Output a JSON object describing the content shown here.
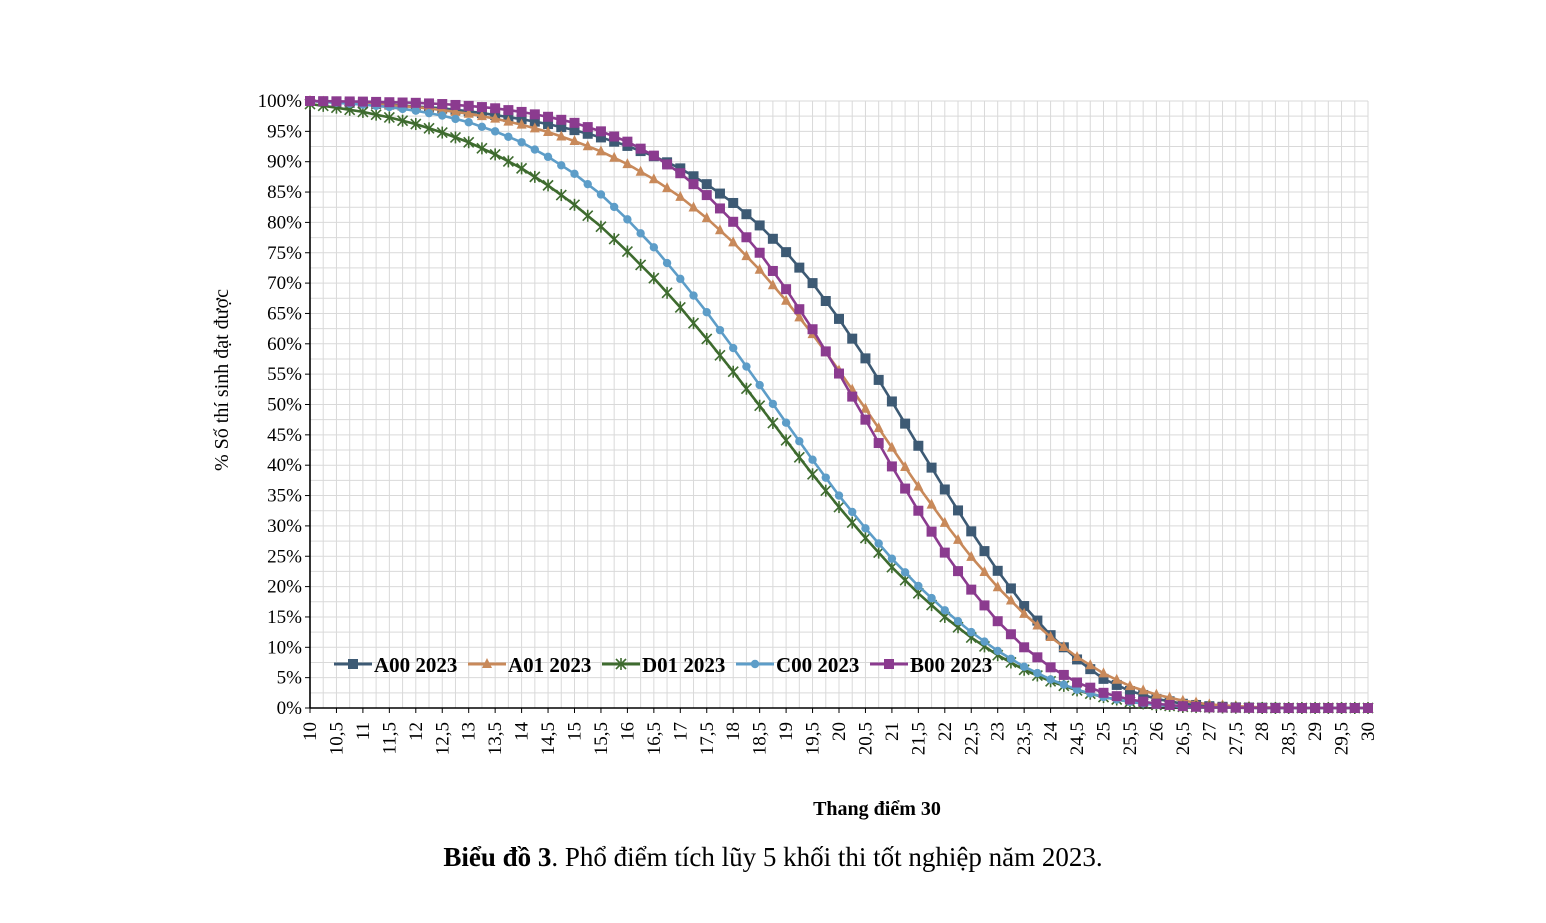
{
  "chart_data": {
    "type": "line",
    "xlabel": "Thang điểm 30",
    "ylabel": "% Số thí sinh đạt được",
    "x": [
      10,
      10.5,
      11,
      11.5,
      12,
      12.5,
      13,
      13.5,
      14,
      14.5,
      15,
      15.5,
      16,
      16.5,
      17,
      17.5,
      18,
      18.5,
      19,
      19.5,
      20,
      20.5,
      21,
      21.5,
      22,
      22.5,
      23,
      23.5,
      24,
      24.5,
      25,
      25.5,
      26,
      26.5,
      27,
      27.5,
      28,
      28.5,
      29,
      29.5,
      30
    ],
    "x_tick_labels": [
      "10",
      "10,5",
      "11",
      "11,5",
      "12",
      "12,5",
      "13",
      "13,5",
      "14",
      "14,5",
      "15",
      "15,5",
      "16",
      "16,5",
      "17",
      "17,5",
      "18",
      "18,5",
      "19",
      "19,5",
      "20",
      "20,5",
      "21",
      "21,5",
      "22",
      "22,5",
      "23",
      "23,5",
      "24",
      "24,5",
      "25",
      "25,5",
      "26",
      "26,5",
      "27",
      "27,5",
      "28",
      "28,5",
      "29",
      "29,5",
      "30"
    ],
    "xlim": [
      10,
      30
    ],
    "ylim": [
      0,
      100
    ],
    "y_tick_labels": [
      "0%",
      "5%",
      "10%",
      "15%",
      "20%",
      "25%",
      "30%",
      "35%",
      "40%",
      "45%",
      "50%",
      "55%",
      "60%",
      "65%",
      "70%",
      "75%",
      "80%",
      "85%",
      "90%",
      "95%",
      "100%"
    ],
    "grid": true,
    "legend_position": "bottom-left",
    "series": [
      {
        "name": "A00 2023",
        "color": "#3d5a74",
        "marker": "square",
        "values": [
          100,
          99.8,
          99.6,
          99.4,
          99.1,
          98.8,
          98.3,
          97.7,
          97,
          96.2,
          95.2,
          94,
          92.6,
          90.9,
          88.9,
          86.3,
          83.2,
          79.5,
          75.1,
          70,
          64.1,
          57.6,
          50.5,
          43.2,
          36,
          29.1,
          22.6,
          16.8,
          12,
          8,
          4.8,
          2.8,
          1.5,
          0.7,
          0.3,
          0.1,
          0.05,
          0,
          0,
          0,
          0
        ]
      },
      {
        "name": "A01 2023",
        "color": "#c8895a",
        "marker": "triangle",
        "values": [
          100,
          99.8,
          99.6,
          99.3,
          99,
          98.5,
          97.9,
          97.1,
          96.1,
          94.9,
          93.4,
          91.7,
          89.6,
          87.1,
          84.2,
          80.7,
          76.7,
          72.2,
          67.1,
          61.6,
          55.6,
          49.3,
          42.9,
          36.5,
          30.5,
          24.9,
          19.9,
          15.5,
          11.7,
          8.4,
          5.7,
          3.6,
          2.2,
          1.2,
          0.6,
          0.3,
          0.1,
          0.05,
          0,
          0,
          0
        ]
      },
      {
        "name": "D01 2023",
        "color": "#3e6b2f",
        "marker": "star",
        "values": [
          99.5,
          98.9,
          98.2,
          97.3,
          96.2,
          94.8,
          93.2,
          91.2,
          88.9,
          86.1,
          82.9,
          79.3,
          75.2,
          70.8,
          66,
          60.8,
          55.4,
          49.8,
          44.1,
          38.5,
          33.1,
          28,
          23.2,
          18.9,
          15,
          11.6,
          8.7,
          6.3,
          4.4,
          2.9,
          1.8,
          1,
          0.5,
          0.2,
          0.1,
          0.05,
          0,
          0,
          0,
          0,
          0
        ]
      },
      {
        "name": "C00 2023",
        "color": "#5d9dc8",
        "marker": "circle",
        "values": [
          100,
          99.7,
          99.4,
          99,
          98.4,
          97.6,
          96.5,
          95,
          93.2,
          90.8,
          88,
          84.6,
          80.5,
          75.9,
          70.7,
          65.2,
          59.3,
          53.2,
          47,
          40.9,
          35,
          29.6,
          24.6,
          20.1,
          16.1,
          12.5,
          9.4,
          6.8,
          4.7,
          3,
          1.8,
          1,
          0.5,
          0.2,
          0.1,
          0.05,
          0,
          0,
          0,
          0,
          0
        ]
      },
      {
        "name": "B00 2023",
        "color": "#8b3b8f",
        "marker": "square",
        "values": [
          100,
          99.95,
          99.9,
          99.8,
          99.7,
          99.5,
          99.2,
          98.8,
          98.2,
          97.4,
          96.4,
          95,
          93.3,
          91,
          88.1,
          84.5,
          80.1,
          75,
          69,
          62.4,
          55.1,
          47.5,
          39.8,
          32.5,
          25.6,
          19.5,
          14.3,
          10,
          6.7,
          4.2,
          2.5,
          1.4,
          0.7,
          0.3,
          0.1,
          0.05,
          0,
          0,
          0,
          0,
          0
        ]
      }
    ]
  },
  "caption": {
    "bold": "Biểu đồ 3",
    "rest": ". Phổ điểm tích lũy 5 khối thi tốt nghiệp năm 2023."
  }
}
